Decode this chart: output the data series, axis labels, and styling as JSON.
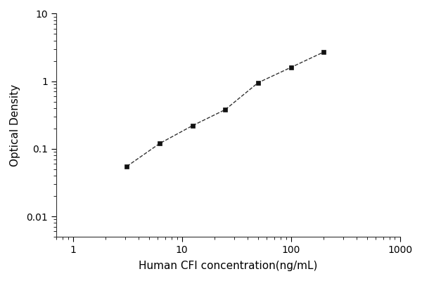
{
  "x": [
    3.125,
    6.25,
    12.5,
    25,
    50,
    100,
    200
  ],
  "y": [
    0.055,
    0.12,
    0.22,
    0.38,
    0.95,
    1.6,
    2.7
  ],
  "xlabel": "Human CFI concentration(ng/mL)",
  "ylabel": "Optical Density",
  "xlim": [
    0.7,
    1000
  ],
  "ylim": [
    0.005,
    10
  ],
  "line_color": "#333333",
  "marker_color": "#111111",
  "marker": "s",
  "marker_size": 5,
  "line_style": "--",
  "line_width": 1.0,
  "xlabel_fontsize": 11,
  "ylabel_fontsize": 11,
  "tick_fontsize": 10,
  "background_color": "#ffffff",
  "xticks": [
    1,
    10,
    100,
    1000
  ],
  "yticks": [
    0.01,
    0.1,
    1,
    10
  ]
}
